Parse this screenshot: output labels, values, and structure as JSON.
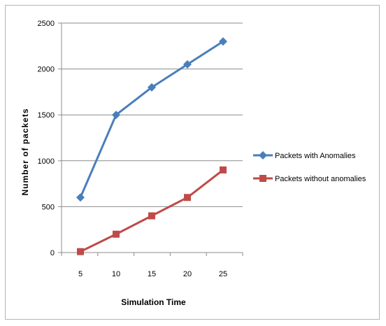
{
  "chart_data": {
    "type": "line",
    "title": "",
    "xlabel": "Simulation Time",
    "ylabel": "Number of packets",
    "x": [
      5,
      10,
      15,
      20,
      25
    ],
    "x_tick_labels": [
      "5",
      "10",
      "15",
      "20",
      "25"
    ],
    "ylim": [
      0,
      2500
    ],
    "y_ticks": [
      0,
      500,
      1000,
      1500,
      2000,
      2500
    ],
    "y_tick_labels": [
      "0",
      "500",
      "1000",
      "1500",
      "2000",
      "2500"
    ],
    "grid": "horizontal major gridlines",
    "legend_position": "right",
    "series": [
      {
        "name": "Packets with Anomalies",
        "values": [
          600,
          1500,
          1800,
          2050,
          2300
        ],
        "color": "#4a7ebb",
        "marker": "diamond"
      },
      {
        "name": "Packets without anomalies",
        "values": [
          10,
          200,
          400,
          600,
          900
        ],
        "color": "#be4b48",
        "marker": "square"
      }
    ]
  }
}
